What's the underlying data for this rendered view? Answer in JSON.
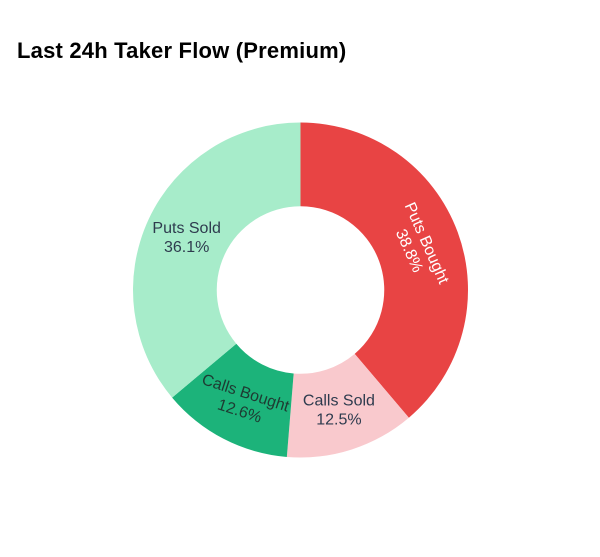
{
  "page": {
    "background": "#ffffff"
  },
  "header": {
    "title": "Last 24h Taker Flow (Premium)"
  },
  "chart_data": {
    "type": "pie",
    "title": "Last 24h Taker Flow (Premium)",
    "donut": true,
    "hole_ratio": 0.5,
    "start_angle": "top",
    "direction": "clockwise",
    "legend": "none",
    "labels_position": "inside",
    "background": "#ffffff",
    "slices": [
      {
        "label": "Puts Bought",
        "value_pct": 38.8,
        "pct_label": "38.8%",
        "color": "#e84444",
        "text_color": "#ffffff",
        "label_rotation_deg": 66
      },
      {
        "label": "Calls Sold",
        "value_pct": 12.5,
        "pct_label": "12.5%",
        "color": "#f9c9cd",
        "text_color": "#2e3b4e",
        "label_rotation_deg": 0
      },
      {
        "label": "Calls Bought",
        "value_pct": 12.6,
        "pct_label": "12.6%",
        "color": "#1cb37a",
        "text_color": "#1e3b32",
        "label_rotation_deg": 18
      },
      {
        "label": "Puts Sold",
        "value_pct": 36.1,
        "pct_label": "36.1%",
        "color": "#a7ecca",
        "text_color": "#2e3b4e",
        "label_rotation_deg": 0
      }
    ]
  }
}
